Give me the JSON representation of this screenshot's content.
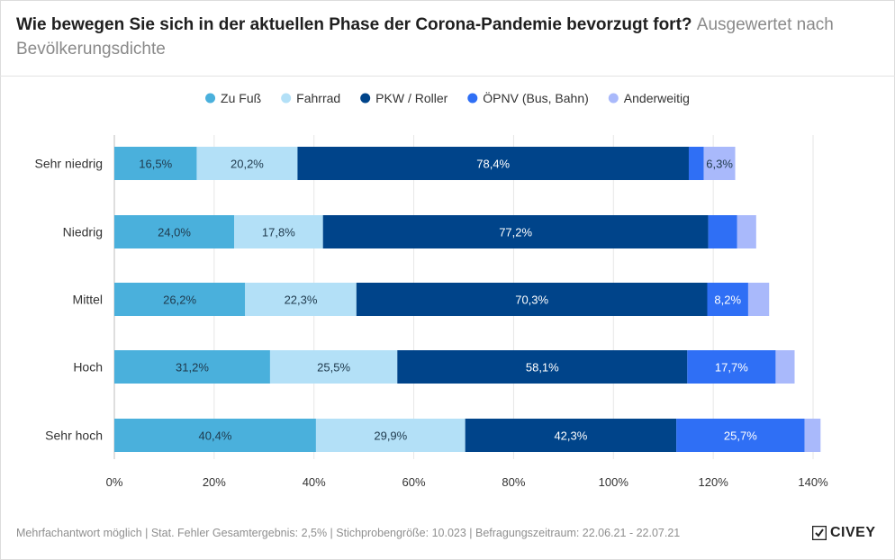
{
  "header": {
    "title": "Wie bewegen Sie sich in der aktuellen Phase der Corona-Pandemie bevorzugt fort?",
    "subtitle": "Ausgewertet nach Bevölkerungsdichte"
  },
  "footer": {
    "note": "Mehrfachantwort möglich | Stat. Fehler Gesamtergebnis: 2,5% | Stichprobengröße: 10.023 | Befragungszeitraum: 22.06.21 - 22.07.21",
    "logo": "CIVEY"
  },
  "chart_data": {
    "type": "bar",
    "orientation": "horizontal",
    "stacked": true,
    "title": "Wie bewegen Sie sich in der aktuellen Phase der Corona-Pandemie bevorzugt fort?",
    "categories": [
      "Sehr niedrig",
      "Niedrig",
      "Mittel",
      "Hoch",
      "Sehr hoch"
    ],
    "series": [
      {
        "name": "Zu Fuß",
        "color": "#4ab0dc",
        "label_color": "#1f3a4d",
        "values": [
          16.5,
          24.0,
          26.2,
          31.2,
          40.4
        ],
        "labels": [
          "16,5%",
          "24,0%",
          "26,2%",
          "31,2%",
          "40,4%"
        ]
      },
      {
        "name": "Fahrrad",
        "color": "#b3e0f7",
        "label_color": "#1f3a4d",
        "values": [
          20.2,
          17.8,
          22.3,
          25.5,
          29.9
        ],
        "labels": [
          "20,2%",
          "17,8%",
          "22,3%",
          "25,5%",
          "29,9%"
        ]
      },
      {
        "name": "PKW / Roller",
        "color": "#00448a",
        "label_color": "#ffffff",
        "values": [
          78.4,
          77.2,
          70.3,
          58.1,
          42.3
        ],
        "labels": [
          "78,4%",
          "77,2%",
          "70,3%",
          "58,1%",
          "42,3%"
        ]
      },
      {
        "name": "ÖPNV (Bus, Bahn)",
        "color": "#2f6ff5",
        "label_color": "#ffffff",
        "values": [
          3.0,
          5.8,
          8.2,
          17.7,
          25.7
        ],
        "labels": [
          "",
          "",
          "8,2%",
          "17,7%",
          "25,7%"
        ]
      },
      {
        "name": "Anderweitig",
        "color": "#a9b9fb",
        "label_color": "#1f3a4d",
        "values": [
          6.3,
          3.8,
          4.2,
          3.8,
          3.2
        ],
        "labels": [
          "6,3%",
          "",
          "",
          "",
          ""
        ]
      }
    ],
    "xlim": [
      0,
      140
    ],
    "xticks": [
      0,
      20,
      40,
      60,
      80,
      100,
      120,
      140
    ],
    "xtick_labels": [
      "0%",
      "20%",
      "40%",
      "60%",
      "80%",
      "100%",
      "120%",
      "140%"
    ],
    "grid": true,
    "legend_position": "top-center"
  }
}
